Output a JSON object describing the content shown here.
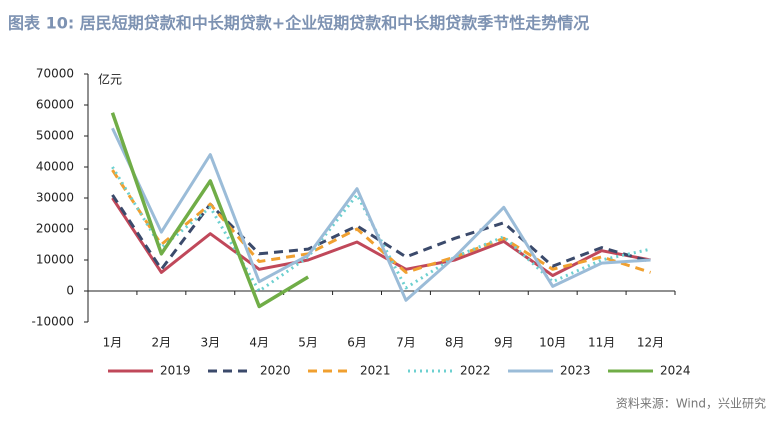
{
  "chart_data": {
    "type": "line",
    "title": "图表 10: 居民短期贷款和中长期贷款+企业短期贷款和中长期贷款季节性走势情况",
    "y_label": "亿元",
    "source": "资料来源：Wind，兴业研究",
    "categories": [
      "1月",
      "2月",
      "3月",
      "4月",
      "5月",
      "6月",
      "7月",
      "8月",
      "9月",
      "10月",
      "11月",
      "12月"
    ],
    "ylim": [
      -10000,
      70000
    ],
    "yticks": [
      -10000,
      0,
      10000,
      20000,
      30000,
      40000,
      50000,
      60000,
      70000
    ],
    "grid": false,
    "legend": "bottom",
    "series": [
      {
        "name": "2019",
        "color": "#c0485a",
        "dash": "solid",
        "values": [
          30000,
          6000,
          18500,
          7000,
          10000,
          15800,
          7000,
          10000,
          16000,
          5000,
          13000,
          10000
        ]
      },
      {
        "name": "2020",
        "color": "#3b4a6b",
        "dash": "dashed",
        "values": [
          31000,
          7000,
          28000,
          12000,
          13500,
          21000,
          11000,
          17000,
          22000,
          8000,
          14000,
          9500
        ]
      },
      {
        "name": "2021",
        "color": "#f0a030",
        "dash": "dashed",
        "values": [
          39000,
          15000,
          28000,
          9500,
          12000,
          20000,
          6000,
          11000,
          17000,
          7000,
          11000,
          6000
        ]
      },
      {
        "name": "2022",
        "color": "#6dd0d0",
        "dash": "dotted",
        "values": [
          40000,
          14000,
          27000,
          0,
          11000,
          31000,
          1000,
          11000,
          17500,
          3000,
          10000,
          13500
        ]
      },
      {
        "name": "2023",
        "color": "#9bbcd8",
        "dash": "solid",
        "values": [
          52500,
          19000,
          44000,
          3000,
          11500,
          33000,
          -3000,
          11000,
          27000,
          1500,
          9000,
          10000
        ]
      },
      {
        "name": "2024",
        "color": "#70ad47",
        "dash": "solid",
        "values": [
          57500,
          12000,
          35500,
          -5000,
          4500,
          null,
          null,
          null,
          null,
          null,
          null,
          null
        ]
      }
    ]
  }
}
